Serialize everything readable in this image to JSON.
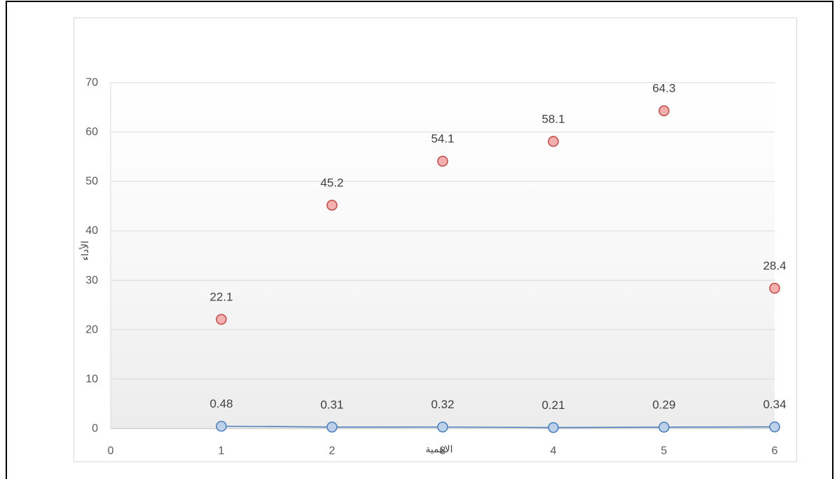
{
  "chart_data": {
    "type": "scatter",
    "xlabel": "الاهمية",
    "ylabel": "الأداء",
    "xlim": [
      0,
      6
    ],
    "ylim": [
      0,
      70
    ],
    "x_ticks": [
      0,
      1,
      2,
      3,
      4,
      5,
      6
    ],
    "y_ticks": [
      0,
      10,
      20,
      30,
      40,
      50,
      60,
      70
    ],
    "grid": true,
    "legend": "none",
    "data_labels": true,
    "grid_color": "#d9d9d9",
    "axis_color": "#bfbfbf",
    "series": [
      {
        "x": [
          1,
          2,
          3,
          4,
          5,
          6
        ],
        "y": [
          22.1,
          45.2,
          54.1,
          58.1,
          64.3,
          28.4
        ],
        "marker": "circle",
        "line": false,
        "color": "#c0504d",
        "fill": "#f4b0ae"
      },
      {
        "x": [
          1,
          2,
          3,
          4,
          5,
          6
        ],
        "y": [
          0.48,
          0.31,
          0.32,
          0.21,
          0.29,
          0.34
        ],
        "marker": "circle",
        "line": true,
        "color": "#4f81bd",
        "fill": "#bdd0ea"
      }
    ]
  }
}
